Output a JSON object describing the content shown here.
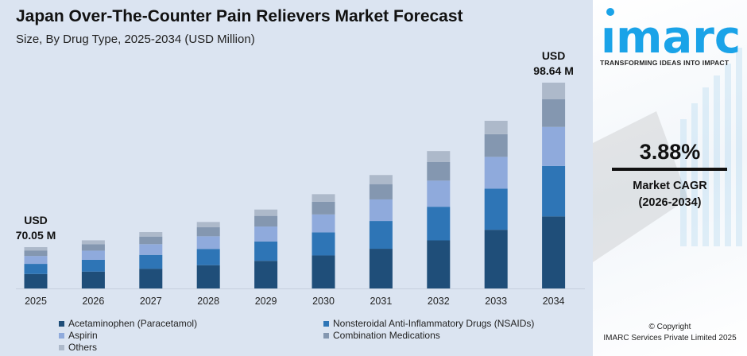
{
  "chart_data": {
    "type": "bar",
    "stacked": true,
    "title": "Japan Over-The-Counter Pain Relievers Market Forecast",
    "subtitle": "Size, By Drug Type, 2025-2034 (USD Million)",
    "categories": [
      "2025",
      "2026",
      "2027",
      "2028",
      "2029",
      "2030",
      "2031",
      "2032",
      "2033",
      "2034"
    ],
    "series": [
      {
        "name": "Acetaminophen (Paracetamol)",
        "color": "#1f4e79",
        "values": [
          24.52,
          25.47,
          26.46,
          27.48,
          28.55,
          29.66,
          30.81,
          32.0,
          33.25,
          34.52
        ]
      },
      {
        "name": "Nonsteroidal Anti-Inflammatory Drugs (NSAIDs)",
        "color": "#2e75b6",
        "values": [
          17.16,
          17.83,
          18.52,
          19.24,
          19.98,
          20.76,
          21.57,
          22.4,
          23.27,
          24.17
        ]
      },
      {
        "name": "Aspirin",
        "color": "#8faadc",
        "values": [
          13.31,
          13.83,
          14.36,
          14.92,
          15.5,
          16.1,
          16.73,
          17.37,
          18.05,
          18.74
        ]
      },
      {
        "name": "Combination Medications",
        "color": "#8497b0",
        "values": [
          9.46,
          9.82,
          10.2,
          10.6,
          11.01,
          11.44,
          11.88,
          12.34,
          12.82,
          13.32
        ]
      },
      {
        "name": "Others",
        "color": "#adb9ca",
        "values": [
          5.6,
          5.82,
          6.05,
          6.28,
          6.53,
          6.78,
          7.04,
          7.33,
          7.6,
          7.89
        ]
      }
    ],
    "totals": [
      70.05,
      72.77,
      75.59,
      78.52,
      81.57,
      84.74,
      88.03,
      91.44,
      94.99,
      98.64
    ],
    "annotations": [
      {
        "category": "2025",
        "line1": "USD",
        "line2": "70.05 M"
      },
      {
        "category": "2034",
        "line1": "USD",
        "line2": "98.64 M"
      }
    ],
    "xlabel": "",
    "ylabel": "",
    "grid": false,
    "legend_position": "bottom"
  },
  "side_panel": {
    "logo_text": "imarc",
    "logo_color": "#1aa3e8",
    "tagline": "TRANSFORMING IDEAS INTO IMPACT",
    "cagr_value": "3.88%",
    "cagr_label": "Market CAGR",
    "cagr_period": "(2026-2034)",
    "copyright_line1": "© Copyright",
    "copyright_line2": "IMARC Services Private Limited 2025"
  }
}
